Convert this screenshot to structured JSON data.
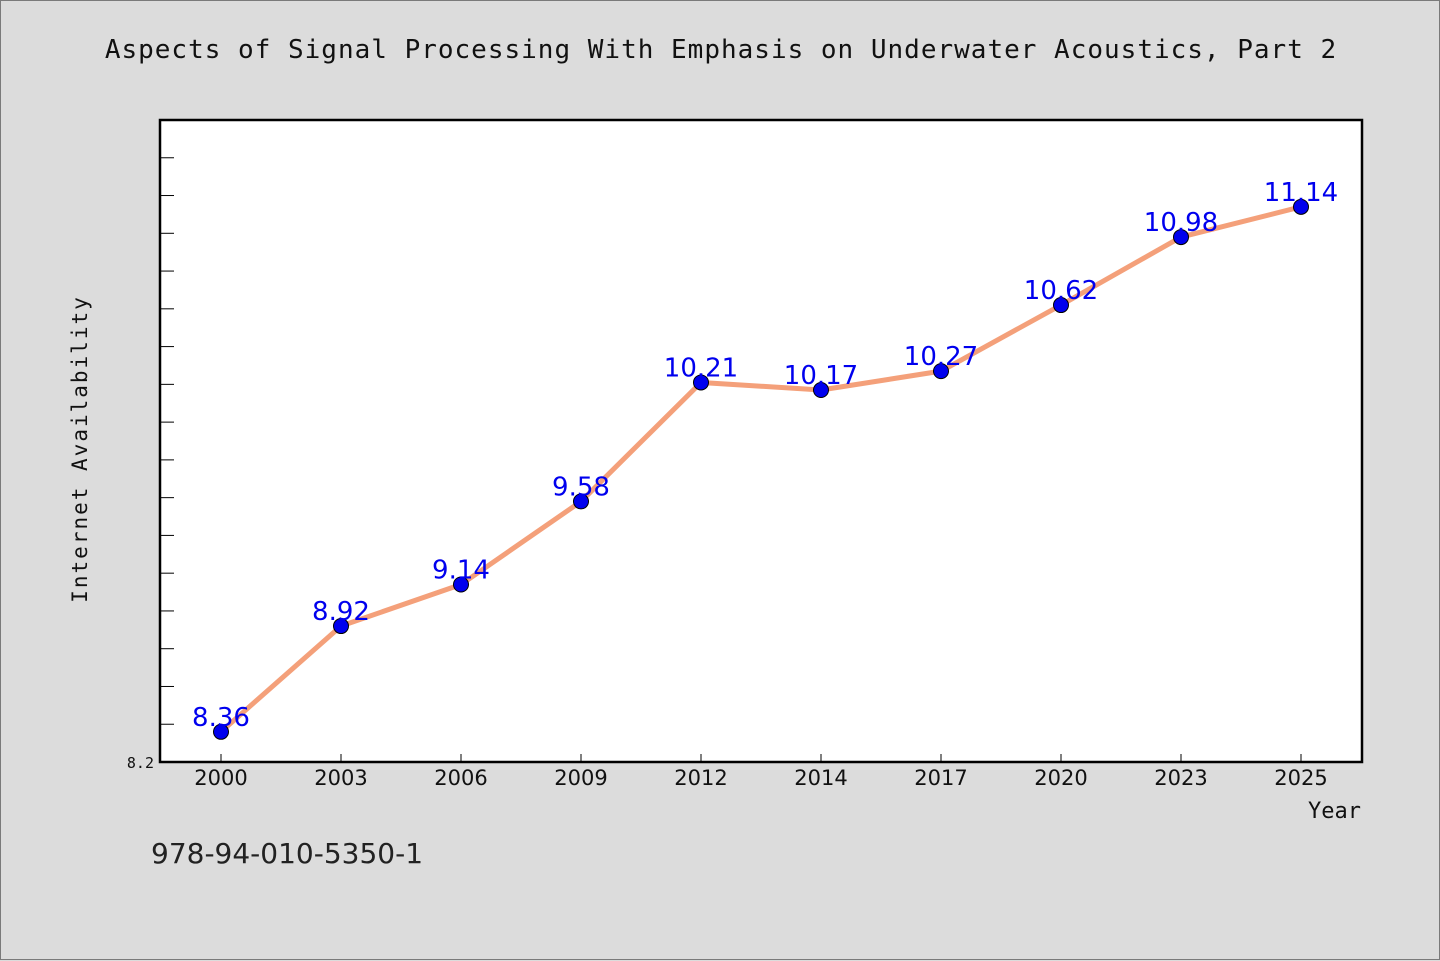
{
  "chart_data": {
    "type": "line",
    "title": "Aspects of Signal Processing With Emphasis on Underwater Acoustics, Part 2",
    "xlabel": "Year",
    "ylabel": "Internet Availability",
    "categories": [
      "2000",
      "2003",
      "2006",
      "2009",
      "2012",
      "2014",
      "2017",
      "2020",
      "2023",
      "2025"
    ],
    "values": [
      8.36,
      8.92,
      9.14,
      9.58,
      10.21,
      10.17,
      10.27,
      10.62,
      10.98,
      11.14
    ],
    "data_labels": [
      "8.36",
      "8.92",
      "9.14",
      "9.58",
      "10.21",
      "10.17",
      "10.27",
      "10.62",
      "10.98",
      "11.14"
    ],
    "ylim": [
      8.2,
      11.6
    ],
    "y_tick_labels": [
      "8.2"
    ],
    "grid": false,
    "line_color": "#f4a07a",
    "marker_color": "#0000ee",
    "label_color": "#0000ee"
  },
  "footer": {
    "isbn": "978-94-010-5350-1"
  }
}
